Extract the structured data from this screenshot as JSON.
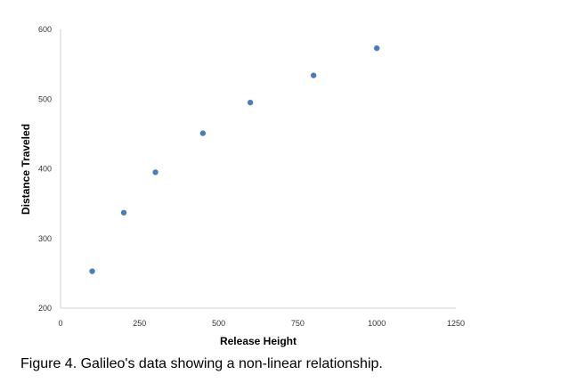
{
  "chart_data": {
    "type": "scatter",
    "xlabel": "Release Height",
    "ylabel": "Distance Traveled",
    "xlim": [
      0,
      1250
    ],
    "ylim": [
      200,
      600
    ],
    "x_ticks": [
      0,
      250,
      500,
      750,
      1000,
      1250
    ],
    "y_ticks": [
      200,
      300,
      400,
      500,
      600
    ],
    "grid": false,
    "legend": "none",
    "marker_color": "#4a7ebb",
    "series": [
      {
        "x": [
          100,
          200,
          300,
          450,
          600,
          800,
          1000
        ],
        "y": [
          253,
          337,
          395,
          451,
          495,
          534,
          573
        ]
      }
    ]
  },
  "caption": "Figure 4. Galileo's data showing a non-linear relationship."
}
